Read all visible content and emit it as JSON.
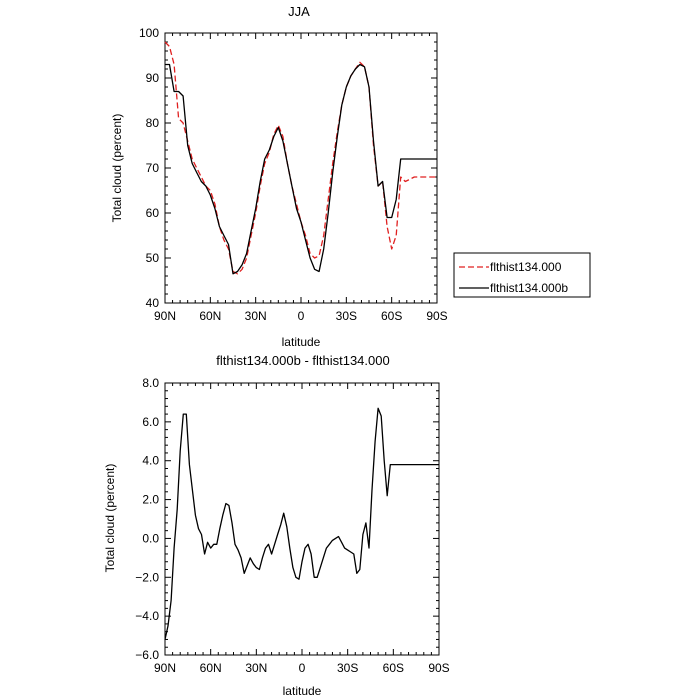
{
  "chart_data": [
    {
      "type": "line",
      "title": "JJA",
      "xlabel": "latitude",
      "ylabel": "Total cloud (percent)",
      "xlim": [
        90,
        -90
      ],
      "ylim": [
        40,
        100
      ],
      "xticks": [
        90,
        60,
        30,
        0,
        -30,
        -60,
        -90
      ],
      "xtick_labels": [
        "90N",
        "60N",
        "30N",
        "0",
        "30S",
        "60S",
        "90S"
      ],
      "yticks": [
        40,
        50,
        60,
        70,
        80,
        90,
        100
      ],
      "ytick_labels": [
        "40",
        "50",
        "60",
        "70",
        "80",
        "90",
        "100"
      ],
      "legend": {
        "position": "right"
      },
      "series": [
        {
          "name": "flthist134.000",
          "color": "#e02020",
          "dash": "dashed",
          "x": [
            90,
            87,
            84,
            81,
            78,
            75,
            72,
            69,
            66,
            63,
            60,
            57,
            54,
            51,
            48,
            45,
            42,
            39,
            36,
            33,
            30,
            27,
            24,
            21,
            18,
            15,
            12,
            9,
            6,
            3,
            0,
            -3,
            -6,
            -9,
            -12,
            -15,
            -18,
            -21,
            -24,
            -27,
            -30,
            -33,
            -36,
            -39,
            -42,
            -45,
            -48,
            -51,
            -54,
            -57,
            -60,
            -63,
            -66,
            -69,
            -72,
            -75,
            -78,
            -81,
            -84,
            -87,
            -90
          ],
          "y": [
            98,
            97,
            93,
            81,
            80,
            76,
            72,
            70,
            68,
            66,
            65,
            62,
            57,
            54,
            52,
            47,
            46.5,
            47.5,
            50,
            55,
            60,
            66,
            71,
            73.5,
            77.5,
            79.5,
            77,
            71,
            66,
            62,
            58,
            55,
            51,
            50,
            50.5,
            55,
            63,
            71,
            78,
            84,
            88,
            90.5,
            92,
            93.5,
            92.5,
            88,
            75,
            66,
            67,
            57,
            52,
            55,
            68,
            67,
            67.5,
            68,
            68,
            68,
            68,
            68,
            68
          ]
        },
        {
          "name": "flthist134.000b",
          "color": "#000000",
          "dash": "solid",
          "x": [
            90,
            87,
            84,
            81,
            78,
            75,
            72,
            69,
            66,
            63,
            60,
            57,
            54,
            51,
            48,
            45,
            42,
            39,
            36,
            33,
            30,
            27,
            24,
            21,
            18,
            15,
            12,
            9,
            6,
            3,
            0,
            -3,
            -6,
            -9,
            -12,
            -15,
            -18,
            -21,
            -24,
            -27,
            -30,
            -33,
            -36,
            -39,
            -42,
            -45,
            -48,
            -51,
            -54,
            -57,
            -60,
            -63,
            -66,
            -69,
            -72,
            -75,
            -78,
            -81,
            -84,
            -87,
            -90
          ],
          "y": [
            93,
            93,
            87,
            87,
            86,
            75,
            71,
            69,
            67,
            66,
            64,
            61,
            57,
            55,
            53,
            46.5,
            47,
            48.5,
            51,
            56,
            61,
            67,
            72,
            74,
            77,
            79,
            76,
            71,
            66,
            61,
            58,
            54,
            50,
            47.5,
            47,
            52,
            60,
            69,
            77,
            84,
            88,
            90.5,
            92,
            93,
            92.5,
            88,
            76,
            66,
            67,
            59,
            59,
            63,
            72,
            72,
            72,
            72,
            72,
            72,
            72,
            72,
            72
          ]
        }
      ]
    },
    {
      "type": "line",
      "title": "flthist134.000b - flthist134.000",
      "xlabel": "latitude",
      "ylabel": "Total cloud (percent)",
      "xlim": [
        90,
        -90
      ],
      "ylim": [
        -6,
        8
      ],
      "xticks": [
        90,
        60,
        30,
        0,
        -30,
        -60,
        -90
      ],
      "xtick_labels": [
        "90N",
        "60N",
        "30N",
        "0",
        "30S",
        "60S",
        "90S"
      ],
      "yticks": [
        -6,
        -4,
        -2,
        0,
        2,
        4,
        6,
        8
      ],
      "ytick_labels": [
        "−6.0",
        "−4.0",
        "−2.0",
        "0.0",
        "2.0",
        "4.0",
        "6.0",
        "8.0"
      ],
      "series": [
        {
          "color": "#000000",
          "dash": "solid",
          "x": [
            90,
            88,
            86,
            84,
            82,
            80,
            78,
            76,
            74,
            72,
            70,
            68,
            66,
            64,
            62,
            60,
            58,
            56,
            54,
            52,
            50,
            48,
            46,
            44,
            42,
            40,
            38,
            36,
            34,
            32,
            30,
            28,
            26,
            24,
            22,
            20,
            18,
            16,
            14,
            12,
            10,
            8,
            6,
            4,
            2,
            0,
            -2,
            -4,
            -6,
            -8,
            -10,
            -12,
            -14,
            -16,
            -18,
            -20,
            -22,
            -24,
            -26,
            -28,
            -30,
            -32,
            -34,
            -36,
            -38,
            -40,
            -42,
            -44,
            -46,
            -48,
            -50,
            -52,
            -54,
            -56,
            -58,
            -60,
            -62,
            -64,
            -66,
            -68,
            -70,
            -72,
            -74,
            -76,
            -78,
            -80,
            -82,
            -84,
            -86,
            -88,
            -90
          ],
          "y": [
            -5.2,
            -4.5,
            -3.2,
            -0.5,
            1.5,
            4.5,
            6.4,
            6.4,
            3.8,
            2.5,
            1.2,
            0.5,
            0.2,
            -0.8,
            -0.2,
            -0.5,
            -0.3,
            -0.3,
            0.5,
            1.2,
            1.8,
            1.7,
            0.8,
            -0.3,
            -0.6,
            -1.0,
            -1.8,
            -1.4,
            -1.0,
            -1.3,
            -1.5,
            -1.6,
            -1.0,
            -0.5,
            -0.3,
            -0.8,
            -0.3,
            0.2,
            0.7,
            1.3,
            0.6,
            -0.5,
            -1.5,
            -2.0,
            -2.1,
            -1.2,
            -0.5,
            -0.3,
            -0.8,
            -2.0,
            -2.0,
            -1.5,
            -1.0,
            -0.5,
            -0.3,
            -0.1,
            0.0,
            0.1,
            -0.2,
            -0.5,
            -0.6,
            -0.7,
            -0.8,
            -1.8,
            -1.6,
            0.2,
            0.8,
            -0.5,
            2.5,
            5.0,
            6.7,
            6.3,
            4.0,
            2.2,
            3.8,
            3.8,
            3.8,
            3.8,
            3.8,
            3.8,
            3.8,
            3.8,
            3.8,
            3.8,
            3.8,
            3.8,
            3.8,
            3.8,
            3.8,
            3.8,
            3.8
          ]
        }
      ]
    }
  ]
}
